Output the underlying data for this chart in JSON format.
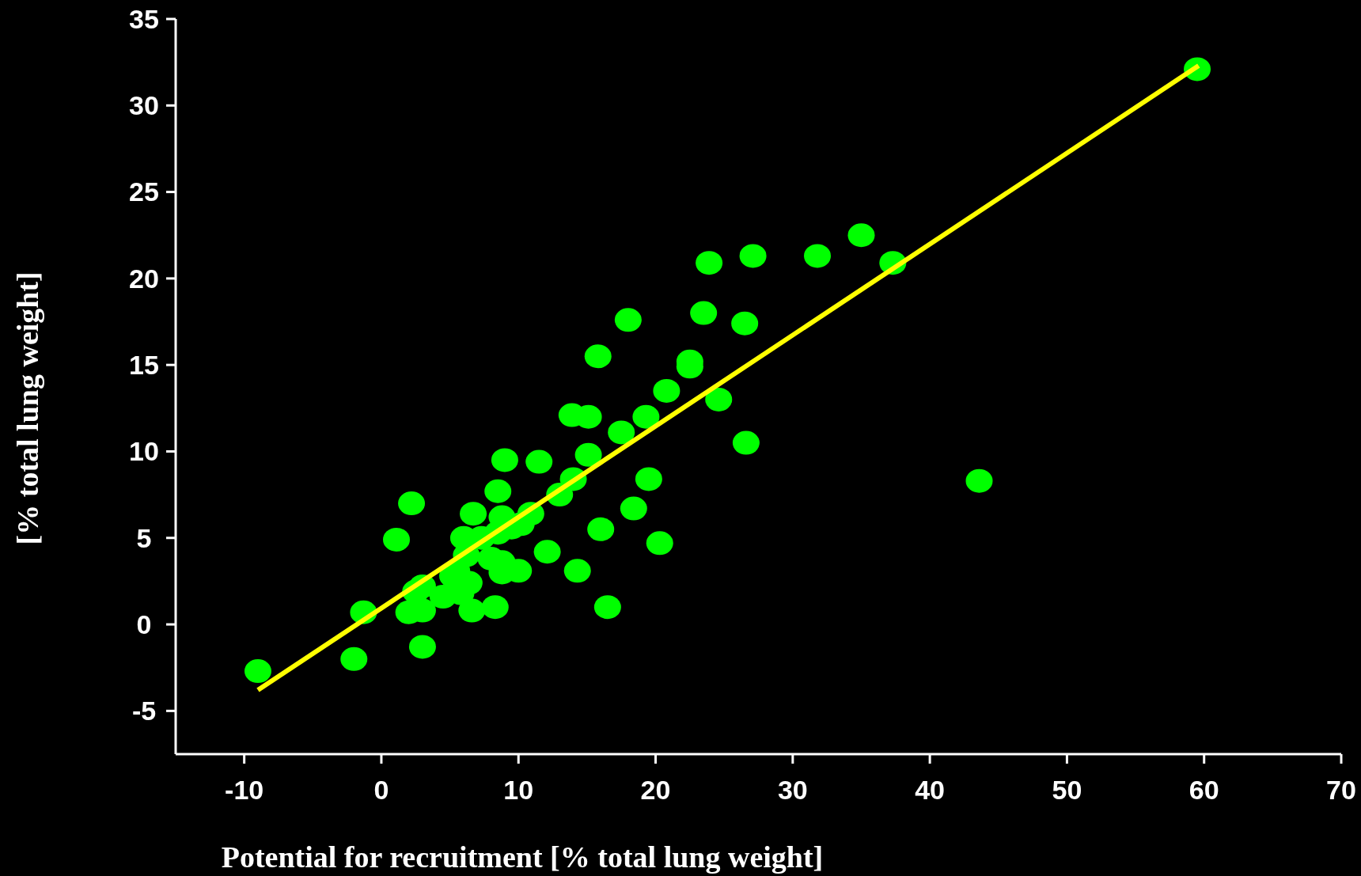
{
  "chart_data": {
    "type": "scatter",
    "xlabel": "Potential for recruitment [% total lung weight]",
    "ylabel": "[% total lung weight]",
    "xlim": [
      -15,
      70
    ],
    "ylim": [
      -7.5,
      35
    ],
    "xticks": [
      -10,
      0,
      10,
      20,
      30,
      40,
      50,
      60,
      70
    ],
    "yticks": [
      -5,
      0,
      5,
      10,
      15,
      20,
      25,
      30,
      35
    ],
    "grid": false,
    "marker": "circle",
    "series": [
      {
        "color": "#00ff00",
        "x": [
          -9,
          59.5,
          -1.3,
          -2,
          1.1,
          2.2,
          2,
          3,
          3,
          2.5,
          3,
          4.5,
          5.2,
          5.5,
          6.4,
          5.8,
          6.6,
          8.3,
          6,
          7.3,
          6.7,
          8.5,
          8.8,
          9.5,
          10.2,
          10.9,
          8.5,
          6.2,
          8,
          8.8,
          8.8,
          10,
          9,
          11.5,
          12.1,
          13,
          14,
          14.3,
          13.9,
          15.1,
          15.1,
          15.8,
          16,
          16.5,
          17.5,
          18,
          18.4,
          19.3,
          19.5,
          20.3,
          20.8,
          22.5,
          22.5,
          23.5,
          23.9,
          24.6,
          26.5,
          26.6,
          27.1,
          31.8,
          35,
          37.3,
          43.6
        ],
        "values": [
          -2.7,
          32.1,
          0.7,
          -2,
          4.9,
          7,
          0.7,
          0.8,
          -1.3,
          1.9,
          2.2,
          1.6,
          2.8,
          3.1,
          2.4,
          1.8,
          0.8,
          1,
          5,
          5,
          6.4,
          7.7,
          6.2,
          5.6,
          5.8,
          6.4,
          5.3,
          4,
          3.8,
          3.6,
          3,
          3.1,
          9.5,
          9.4,
          4.2,
          7.5,
          8.4,
          3.1,
          12.1,
          12,
          9.8,
          15.5,
          5.5,
          1,
          11.1,
          17.6,
          6.7,
          12,
          8.4,
          4.7,
          13.5,
          15.2,
          14.9,
          18,
          20.9,
          13,
          17.4,
          10.5,
          21.3,
          21.3,
          22.5,
          20.9,
          8.3
        ]
      },
      {
        "type": "line",
        "color": "#ffff00",
        "marker": "none",
        "line_style": "solid",
        "x": [
          -9,
          59.6
        ],
        "values": [
          -3.8,
          32.3
        ]
      }
    ]
  }
}
